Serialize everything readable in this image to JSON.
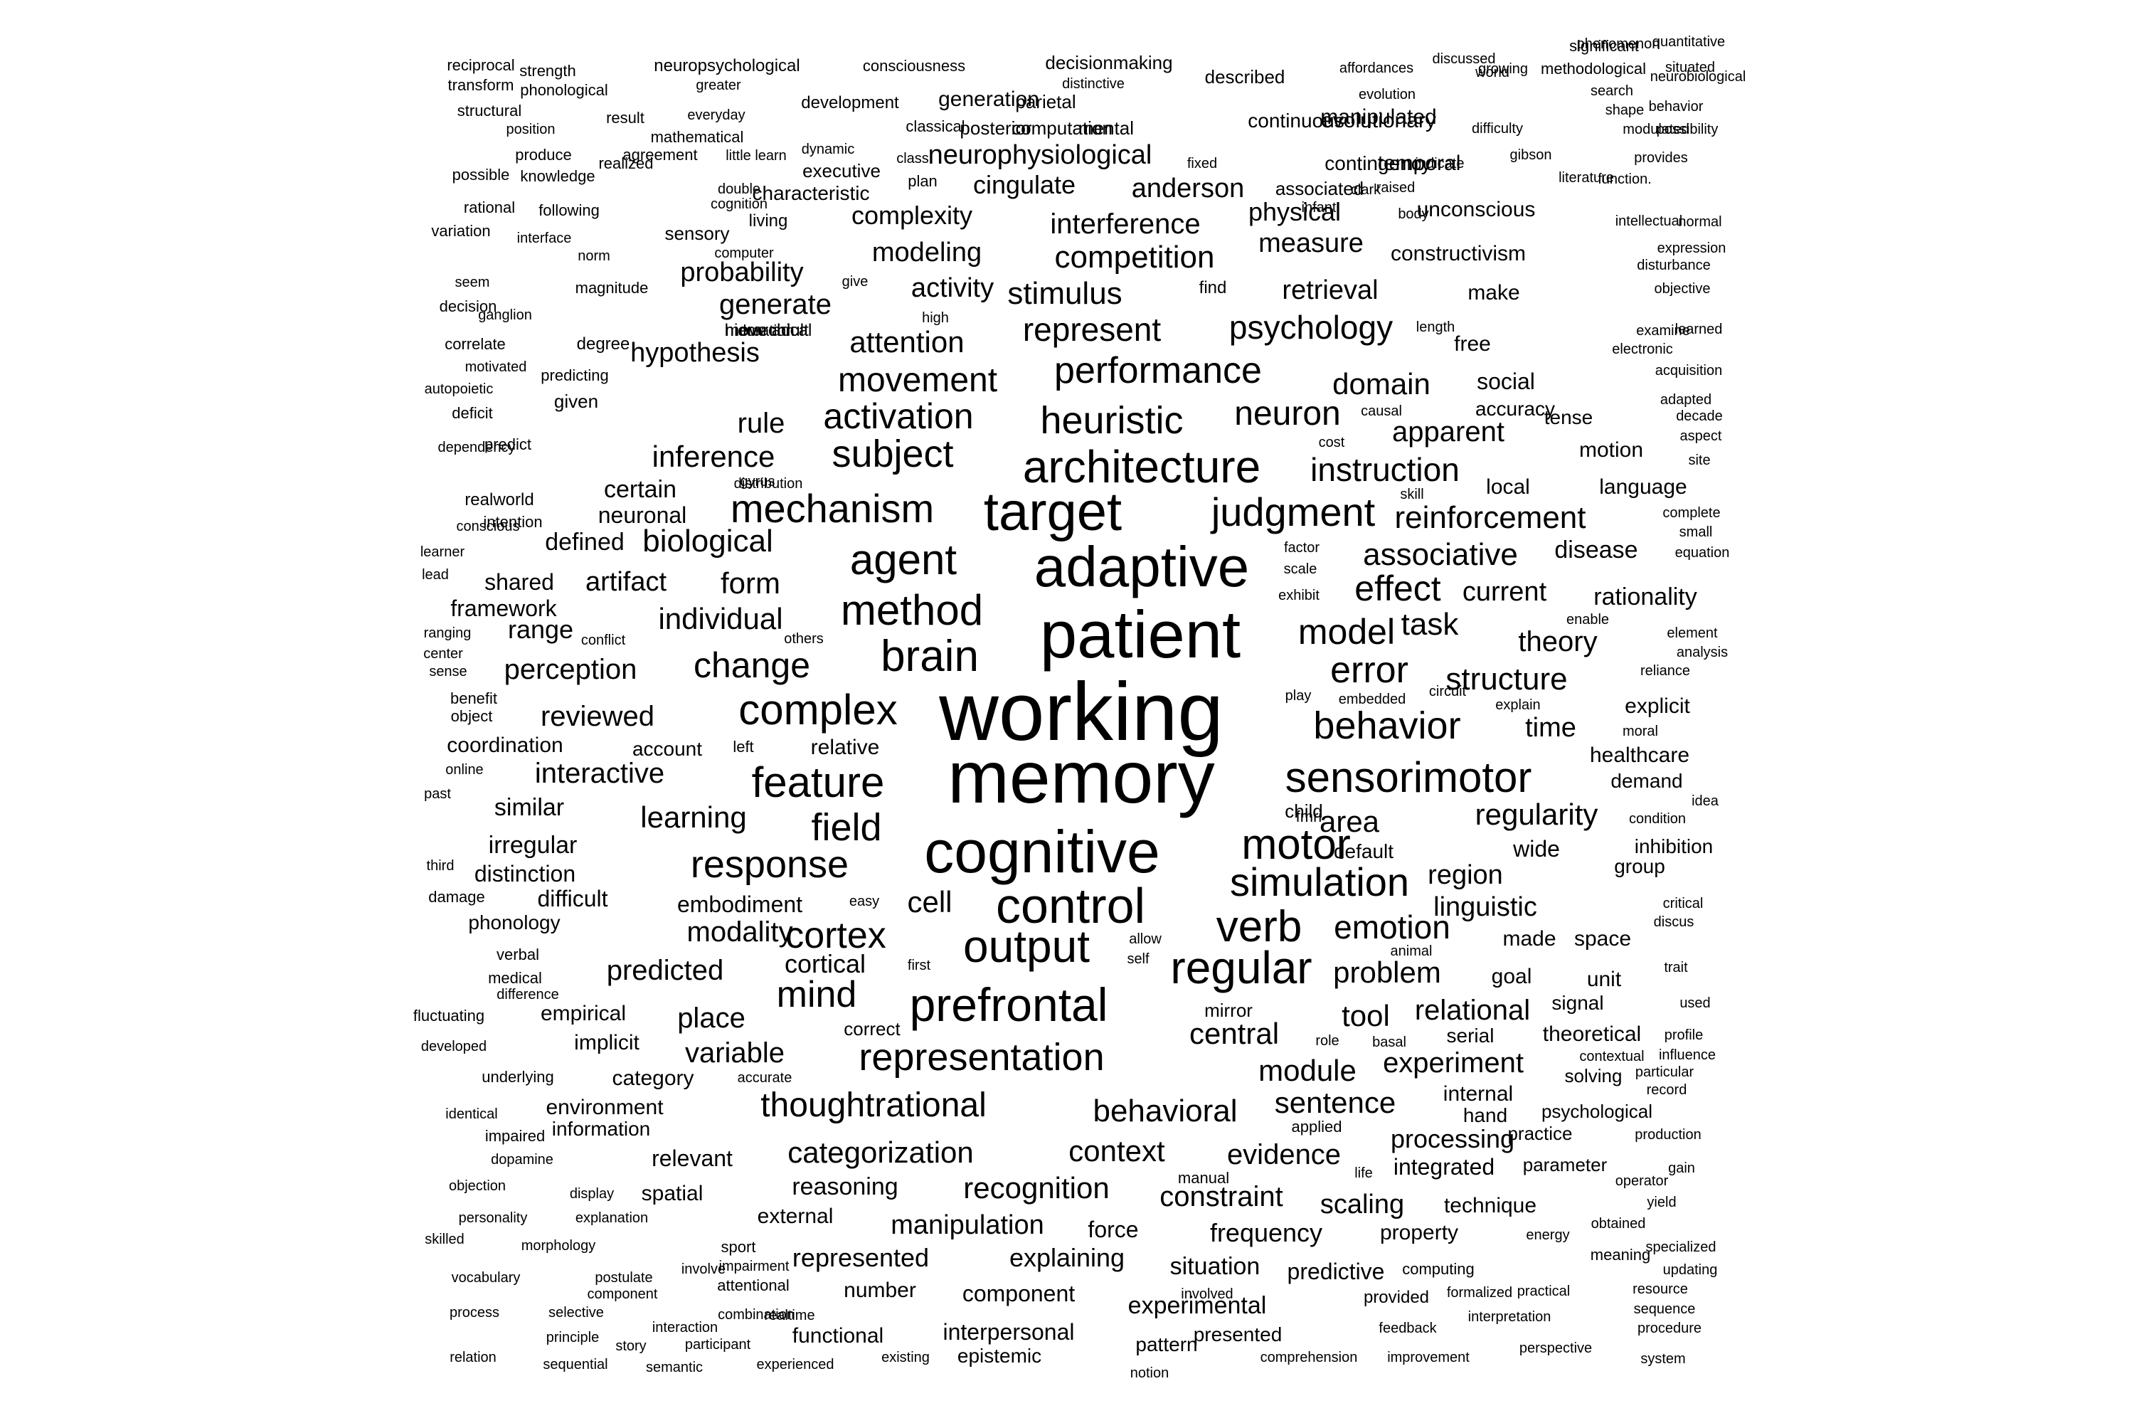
{
  "word_cloud": {
    "text_color": "#000000",
    "background_color": "#ffffff",
    "words": [
      "working",
      "memory",
      "patient",
      "adaptive",
      "cognitive",
      "target",
      "architecture",
      "control",
      "prefrontal",
      "output",
      "regular",
      "verb",
      "motor",
      "brain",
      "agent",
      "method",
      "mechanism",
      "judgment",
      "sensorimotor",
      "feature",
      "complex",
      "simulation",
      "representation",
      "heuristic",
      "performance",
      "subject",
      "response",
      "movement",
      "activation",
      "model",
      "error",
      "behavior",
      "emotion",
      "field",
      "cortex",
      "thoughtrational",
      "change",
      "mind",
      "represent",
      "psychology",
      "competition",
      "stimulus",
      "interference",
      "neuron",
      "instruction",
      "reinforcement",
      "associative",
      "effect",
      "task",
      "structure",
      "categorization",
      "recognition",
      "behavioral",
      "module",
      "central",
      "context",
      "sentence",
      "experiment",
      "tool",
      "problem",
      "area",
      "regularity",
      "cell",
      "modality",
      "predicted",
      "variable",
      "domain",
      "apparent",
      "biological",
      "individual",
      "form",
      "rule",
      "inference",
      "attention",
      "generate",
      "activity",
      "modeling",
      "hypothesis",
      "learning",
      "interactive",
      "perception",
      "reviewed",
      "place",
      "cortical",
      "relational",
      "evidence",
      "processing",
      "constraint",
      "scaling",
      "linguistic",
      "region",
      "neurophysiological",
      "cingulate",
      "anderson",
      "complexity",
      "physical",
      "measure",
      "retrieval",
      "probability",
      "theory",
      "current",
      "rationality",
      "disease",
      "artifact",
      "shared",
      "framework",
      "range",
      "certain",
      "neuronal",
      "defined",
      "manipulation",
      "reasoning",
      "represented",
      "explaining",
      "frequency",
      "situation",
      "experimental",
      "predictive",
      "integrated",
      "technique",
      "property",
      "component",
      "interpersonal",
      "functional",
      "number",
      "epistemic",
      "presented",
      "pattern",
      "force",
      "external",
      "spatial",
      "relevant",
      "environment",
      "information",
      "category",
      "implicit",
      "empirical",
      "difficult",
      "phonology",
      "embodiment",
      "irregular",
      "distinction",
      "similar",
      "coordination",
      "account",
      "relative",
      "explicit",
      "healthcare",
      "demand",
      "inhibition",
      "group",
      "wide",
      "default",
      "child",
      "time",
      "goal",
      "unit",
      "signal",
      "theoretical",
      "serial",
      "internal",
      "hand",
      "solving",
      "psychological",
      "practice",
      "parameter",
      "made",
      "space",
      "local",
      "language",
      "motion",
      "tense",
      "social",
      "accuracy",
      "free",
      "make",
      "constructivism",
      "unconscious",
      "temporal",
      "manipulated",
      "contingency",
      "associated",
      "evolutionary",
      "continuous",
      "described",
      "generation",
      "parietal",
      "mental",
      "computation",
      "posterior",
      "executive",
      "characteristic",
      "living",
      "sensory",
      "development",
      "decisionmaking",
      "consciousness",
      "neuropsychological",
      "phonological",
      "strength",
      "reciprocal",
      "transform",
      "structural",
      "position",
      "produce",
      "possible",
      "knowledge",
      "realized",
      "agreement",
      "mathematical",
      "everyday",
      "greater",
      "result",
      "distinctive",
      "classical",
      "dynamic",
      "little learn",
      "class",
      "double",
      "cognition",
      "plan",
      "rational",
      "following",
      "variation",
      "interface",
      "norm",
      "computer",
      "seem",
      "magnitude",
      "find",
      "give",
      "decision",
      "ganglion",
      "move adult",
      "high",
      "hierarchical",
      "correlate",
      "motivated",
      "degree",
      "duration",
      "predicting",
      "autopoietic",
      "deficit",
      "given",
      "dependency",
      "predict",
      "gyrus",
      "realworld",
      "intention",
      "conscious",
      "distribution",
      "learner",
      "lead",
      "ranging",
      "center",
      "sense",
      "conflict",
      "others",
      "benefit",
      "object",
      "left",
      "online",
      "past",
      "third",
      "damage",
      "easy",
      "verbal",
      "medical",
      "difference",
      "fluctuating",
      "developed",
      "underlying",
      "accurate",
      "identical",
      "impaired",
      "dopamine",
      "objection",
      "display",
      "personality",
      "explanation",
      "skilled",
      "morphology",
      "sport",
      "vocabulary",
      "postulate",
      "involve",
      "attentional",
      "impairment",
      "process",
      "component",
      "realtime",
      "selective",
      "combination",
      "principle",
      "interaction",
      "relation",
      "story",
      "participant",
      "sequential",
      "semantic",
      "experienced",
      "existing",
      "notion",
      "comprehension",
      "improvement",
      "perspective",
      "system",
      "procedure",
      "sequence",
      "resource",
      "feedback",
      "interpretation",
      "formalized",
      "practical",
      "computing",
      "updating",
      "specialized",
      "meaning",
      "energy",
      "obtained",
      "yield",
      "operator",
      "gain",
      "production",
      "record",
      "particular",
      "influence",
      "contextual",
      "profile",
      "used",
      "trait",
      "discus",
      "critical",
      "condition",
      "idea",
      "moral",
      "explain",
      "embedded",
      "circuit",
      "enable",
      "element",
      "analysis",
      "reliance",
      "equation",
      "small",
      "complete",
      "factor",
      "scale",
      "exhibit",
      "skill",
      "cost",
      "causal",
      "aspect",
      "site",
      "decade",
      "adapted",
      "acquisition",
      "electronic",
      "examine",
      "learned",
      "objective",
      "expression",
      "disturbance",
      "normal",
      "intellectual",
      "function.",
      "provides",
      "literature",
      "modulated",
      "shape",
      "search",
      "possibility",
      "behavior",
      "neurobiological",
      "situated",
      "quantitative",
      "significant",
      "phenomenon",
      "methodological",
      "growing",
      "discussed",
      "world",
      "evolution",
      "difficulty",
      "gibson",
      "indicate",
      "raised",
      "infant",
      "affordances",
      "fixed",
      "clark",
      "body",
      "length",
      "fmri",
      "play",
      "mirror",
      "role",
      "basal",
      "applied",
      "manual",
      "life",
      "involved",
      "animal",
      "allow",
      "self",
      "first",
      "correct",
      "provided"
    ]
  }
}
